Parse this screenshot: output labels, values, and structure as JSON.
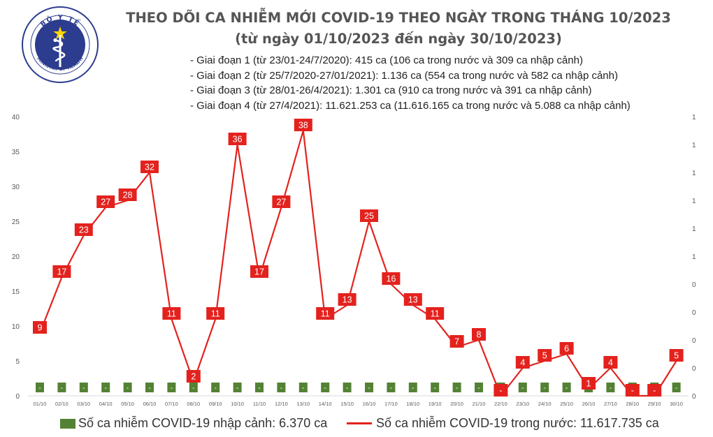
{
  "header": {
    "logo_text": "BỘ Y TẾ",
    "logo_subtext": "MINISTRY OF HEALTH",
    "title": "THEO DÕI CA NHIỄM MỚI COVID-19 THEO NGÀY TRONG THÁNG 10/2023",
    "subtitle": "(từ ngày 01/10/2023 đến ngày 30/10/2023)"
  },
  "notes": [
    "- Giai đoạn 1 (từ 23/01-24/7/2020): 415 ca (106 ca trong nước và 309 ca nhập cảnh)",
    "- Giai đoạn 2 (từ 25/7/2020-27/01/2021): 1.136 ca (554 ca trong nước và 582 ca nhập cảnh)",
    "- Giai đoạn 3 (từ 28/01-26/4/2021): 1.301 ca (910 ca trong nước và 391 ca nhập cảnh)",
    "- Giai đoạn 4 (từ 27/4/2021): 11.621.253 ca (11.616.165 ca trong nước và 5.088 ca nhập cảnh)"
  ],
  "chart_data": {
    "type": "bar",
    "categories": [
      "01/10",
      "02/10",
      "03/10",
      "04/10",
      "05/10",
      "06/10",
      "07/10",
      "08/10",
      "09/10",
      "10/10",
      "11/10",
      "12/10",
      "13/10",
      "14/10",
      "15/10",
      "16/10",
      "17/10",
      "18/10",
      "19/10",
      "20/10",
      "21/10",
      "22/10",
      "23/10",
      "24/10",
      "25/10",
      "26/10",
      "27/10",
      "28/10",
      "29/10",
      "30/10"
    ],
    "ylim": [
      0,
      40
    ],
    "yticks": [
      0,
      5,
      10,
      15,
      20,
      25,
      30,
      35,
      40
    ],
    "y2ticks": [
      "0",
      "0",
      "0",
      "0",
      "0",
      "1",
      "1",
      "1",
      "1",
      "1",
      "1"
    ],
    "grid": false,
    "legend_position": "bottom",
    "series": [
      {
        "name": "Số ca nhiễm COVID-19 nhập cảnh: 6.370 ca",
        "type": "bar",
        "color": "#548235",
        "label_color": "#ffffff",
        "values": [
          0,
          0,
          0,
          0,
          0,
          0,
          0,
          0,
          0,
          0,
          0,
          0,
          0,
          0,
          0,
          0,
          0,
          0,
          0,
          0,
          0,
          0,
          0,
          0,
          0,
          0,
          0,
          0,
          0,
          0
        ],
        "labels": [
          "-",
          "-",
          "-",
          "-",
          "-",
          "-",
          "-",
          "-",
          "-",
          "-",
          "-",
          "-",
          "-",
          "-",
          "-",
          "-",
          "-",
          "-",
          "-",
          "-",
          "-",
          "-",
          "-",
          "-",
          "-",
          "-",
          "-",
          "-",
          "-",
          "-"
        ]
      },
      {
        "name": "Số ca nhiễm COVID-19 trong nước: 11.617.735 ca",
        "type": "line",
        "color": "#e3221e",
        "label_color": "#ffffff",
        "values": [
          9,
          17,
          23,
          27,
          28,
          32,
          11,
          2,
          11,
          36,
          17,
          27,
          38,
          11,
          13,
          25,
          16,
          13,
          11,
          7,
          8,
          0,
          4,
          5,
          6,
          1,
          4,
          0,
          0,
          5
        ],
        "labels": [
          "9",
          "17",
          "23",
          "27",
          "28",
          "32",
          "11",
          "2",
          "11",
          "36",
          "17",
          "27",
          "38",
          "11",
          "13",
          "25",
          "16",
          "13",
          "11",
          "7",
          "8",
          "-",
          "4",
          "5",
          "6",
          "1",
          "4",
          "-",
          "-",
          "5"
        ]
      }
    ]
  }
}
